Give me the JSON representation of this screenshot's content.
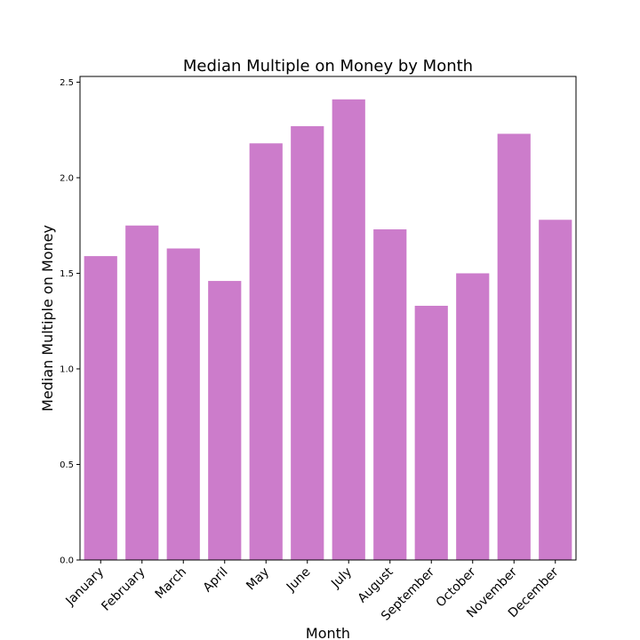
{
  "chart_data": {
    "type": "bar",
    "title": "Median Multiple on Money by Month",
    "xlabel": "Month",
    "ylabel": "Median Multiple on Money",
    "categories": [
      "January",
      "February",
      "March",
      "April",
      "May",
      "June",
      "July",
      "August",
      "September",
      "October",
      "November",
      "December"
    ],
    "values": [
      1.59,
      1.75,
      1.63,
      1.46,
      2.18,
      2.27,
      2.41,
      1.73,
      1.33,
      1.5,
      2.23,
      1.78
    ],
    "ylim": [
      0,
      2.53
    ],
    "yticks": [
      0.0,
      0.5,
      1.0,
      1.5,
      2.0,
      2.5
    ],
    "ytick_labels": [
      "0.0",
      "0.5",
      "1.0",
      "1.5",
      "2.0",
      "2.5"
    ],
    "bar_color": "#cc7ccb",
    "grid": false,
    "legend": "none"
  }
}
